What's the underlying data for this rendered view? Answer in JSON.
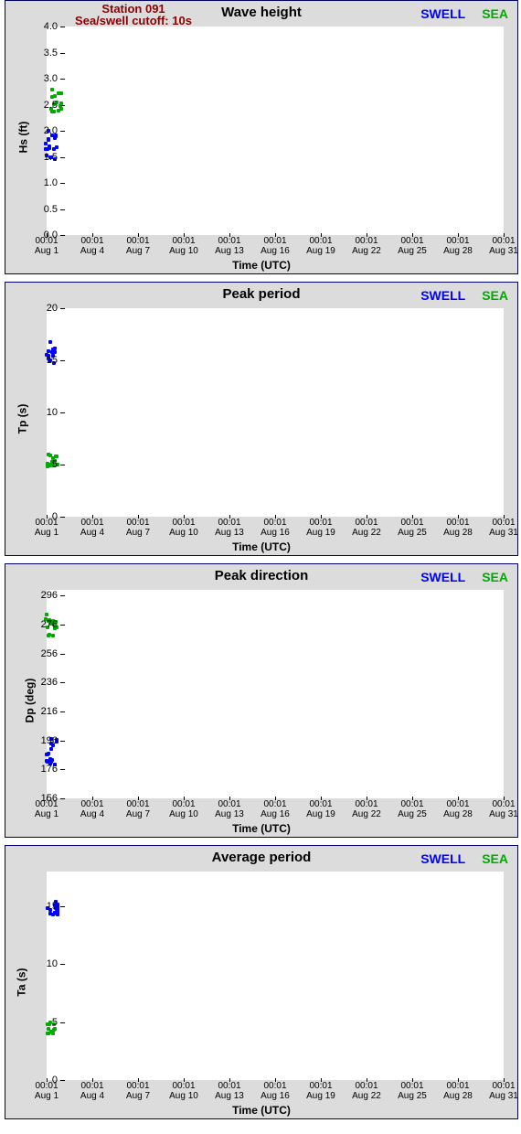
{
  "global": {
    "station_title": "Station 091",
    "cutoff_text": "Sea/swell cutoff: 10s",
    "x_label": "Time (UTC)",
    "legend_swell": "SWELL",
    "legend_sea": "SEA",
    "swell_color": "#0000ff",
    "sea_color": "#00aa00",
    "panel_bg": "#dcdcdc",
    "plot_bg": "#ffffff",
    "border_color": "#000066",
    "x_ticks_time": [
      "00:01",
      "00:01",
      "00:01",
      "00:01",
      "00:01",
      "00:01",
      "00:01",
      "00:01",
      "00:01",
      "00:01",
      "00:01"
    ],
    "x_ticks_date": [
      "Aug 1",
      "Aug 4",
      "Aug 7",
      "Aug 10",
      "Aug 13",
      "Aug 16",
      "Aug 19",
      "Aug 22",
      "Aug 25",
      "Aug 28",
      "Aug 31"
    ],
    "x_tick_days": [
      1,
      4,
      7,
      10,
      13,
      16,
      19,
      22,
      25,
      28,
      31
    ],
    "x_range_days": [
      1,
      31
    ]
  },
  "panels": [
    {
      "title": "Wave height",
      "ylabel": "Hs (ft)",
      "show_station": true,
      "ylim": [
        0,
        4.0
      ],
      "yticks": [
        0.0,
        0.5,
        1.0,
        1.5,
        2.0,
        2.5,
        3.0,
        3.5,
        4.0
      ],
      "ytick_labels": [
        "0.0",
        "0.5",
        "1.0",
        "1.5",
        "2.0",
        "2.5",
        "3.0",
        "3.5",
        "4.0"
      ],
      "swell_cluster": {
        "day": 1.3,
        "ymin": 1.4,
        "ymax": 2.0,
        "n": 18
      },
      "sea_cluster": {
        "day": 1.6,
        "ymin": 2.3,
        "ymax": 2.8,
        "n": 14
      }
    },
    {
      "title": "Peak period",
      "ylabel": "Tp (s)",
      "show_station": false,
      "ylim": [
        0,
        20
      ],
      "yticks": [
        0,
        5,
        10,
        15,
        20
      ],
      "ytick_labels": [
        "0",
        "5",
        "10",
        "15",
        "20"
      ],
      "swell_cluster": {
        "day": 1.3,
        "ymin": 14.5,
        "ymax": 16.8,
        "n": 14
      },
      "sea_cluster": {
        "day": 1.4,
        "ymin": 4.8,
        "ymax": 6.0,
        "n": 14
      }
    },
    {
      "title": "Peak direction",
      "ylabel": "Dp (deg)",
      "show_station": false,
      "ylim": [
        156,
        300
      ],
      "yticks": [
        156,
        176,
        196,
        216,
        236,
        256,
        276,
        296
      ],
      "ytick_labels": [
        "156",
        "176",
        "196",
        "216",
        "236",
        "256",
        "276",
        "296"
      ],
      "swell_cluster": {
        "day": 1.3,
        "ymin": 178,
        "ymax": 200,
        "n": 16
      },
      "sea_cluster": {
        "day": 1.3,
        "ymin": 268,
        "ymax": 284,
        "n": 16
      }
    },
    {
      "title": "Average period",
      "ylabel": "Ta (s)",
      "show_station": false,
      "ylim": [
        0,
        18
      ],
      "yticks": [
        0,
        5,
        10,
        15
      ],
      "ytick_labels": [
        "0",
        "5",
        "10",
        "15"
      ],
      "swell_cluster": {
        "day": 1.4,
        "ymin": 14.2,
        "ymax": 15.5,
        "n": 16
      },
      "sea_cluster": {
        "day": 1.4,
        "ymin": 4.0,
        "ymax": 5.0,
        "n": 12
      }
    }
  ]
}
